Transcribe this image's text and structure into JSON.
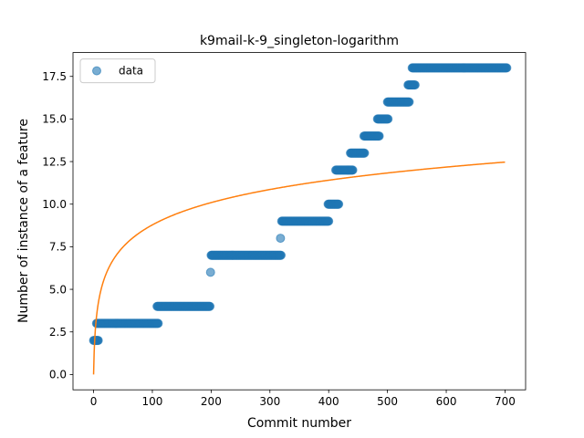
{
  "chart_data": {
    "type": "scatter",
    "title": "k9mail-k-9_singleton-logarithm",
    "xlabel": "Commit number",
    "ylabel": "Number of instance of a feature",
    "xlim": [
      -35,
      735
    ],
    "ylim": [
      -0.9,
      18.9
    ],
    "xticks": [
      0,
      100,
      200,
      300,
      400,
      500,
      600,
      700
    ],
    "yticks": [
      0.0,
      2.5,
      5.0,
      7.5,
      10.0,
      12.5,
      15.0,
      17.5
    ],
    "xtick_labels": [
      "0",
      "100",
      "200",
      "300",
      "400",
      "500",
      "600",
      "700"
    ],
    "ytick_labels": [
      "0.0",
      "2.5",
      "5.0",
      "7.5",
      "10.0",
      "12.5",
      "15.0",
      "17.5"
    ],
    "grid": false,
    "legend": {
      "position": "top-left",
      "entries": [
        "data"
      ]
    },
    "series": [
      {
        "name": "data",
        "kind": "scatter",
        "color": "#1f77b4",
        "segments": [
          {
            "x_start": 0,
            "x_end": 8,
            "y": 2
          },
          {
            "x_start": 5,
            "x_end": 110,
            "y": 3
          },
          {
            "x_start": 108,
            "x_end": 198,
            "y": 4
          },
          {
            "x_start": 199,
            "x_end": 199,
            "y": 6
          },
          {
            "x_start": 200,
            "x_end": 319,
            "y": 7
          },
          {
            "x_start": 318,
            "x_end": 318,
            "y": 8
          },
          {
            "x_start": 320,
            "x_end": 400,
            "y": 9
          },
          {
            "x_start": 399,
            "x_end": 417,
            "y": 10
          },
          {
            "x_start": 412,
            "x_end": 441,
            "y": 12
          },
          {
            "x_start": 437,
            "x_end": 461,
            "y": 13
          },
          {
            "x_start": 460,
            "x_end": 486,
            "y": 14
          },
          {
            "x_start": 483,
            "x_end": 501,
            "y": 15
          },
          {
            "x_start": 500,
            "x_end": 537,
            "y": 16
          },
          {
            "x_start": 535,
            "x_end": 547,
            "y": 17
          },
          {
            "x_start": 542,
            "x_end": 703,
            "y": 18
          }
        ]
      },
      {
        "name": "",
        "kind": "line",
        "color": "#ff7f0e",
        "function": "logarithmic",
        "x_range": [
          0,
          700
        ],
        "samples": [
          {
            "x": 0,
            "y": 0.0
          },
          {
            "x": 10,
            "y": 3.8
          },
          {
            "x": 50,
            "y": 7.1
          },
          {
            "x": 100,
            "y": 8.8
          },
          {
            "x": 200,
            "y": 10.3
          },
          {
            "x": 300,
            "y": 11.0
          },
          {
            "x": 400,
            "y": 11.5
          },
          {
            "x": 500,
            "y": 11.9
          },
          {
            "x": 600,
            "y": 12.2
          },
          {
            "x": 700,
            "y": 12.5
          }
        ]
      }
    ]
  }
}
